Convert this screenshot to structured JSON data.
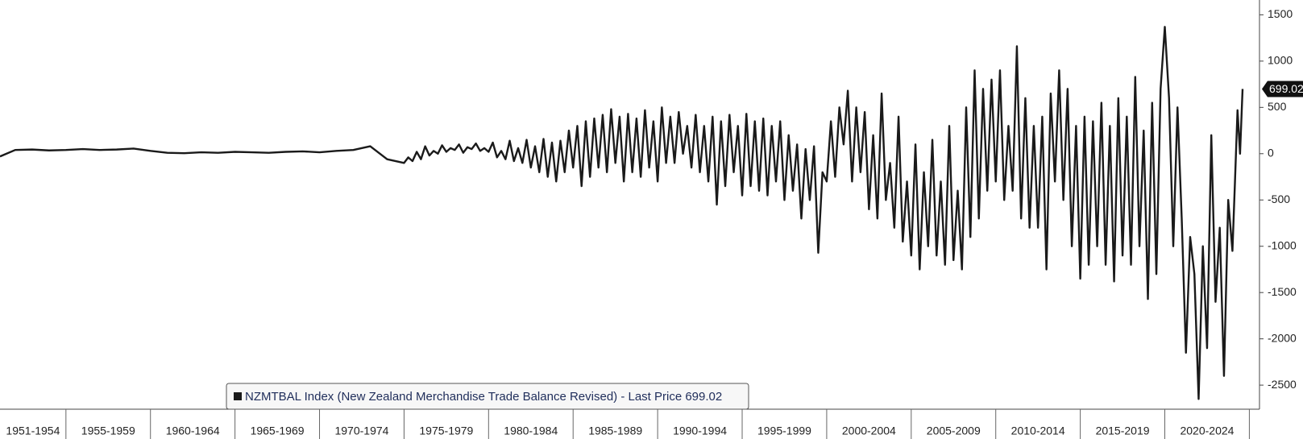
{
  "chart_data": {
    "type": "line",
    "x": [
      1951.1,
      1952,
      1953,
      1954,
      1955,
      1956,
      1957,
      1958,
      1959,
      1960,
      1961,
      1962,
      1963,
      1964,
      1965,
      1966,
      1967,
      1968,
      1969,
      1970,
      1971,
      1972,
      1973,
      1974,
      1975,
      1975.25,
      1975.5,
      1975.75,
      1976,
      1976.25,
      1976.5,
      1976.75,
      1977,
      1977.25,
      1977.5,
      1977.75,
      1978,
      1978.25,
      1978.5,
      1978.75,
      1979,
      1979.25,
      1979.5,
      1979.75,
      1980,
      1980.25,
      1980.5,
      1980.75,
      1981,
      1981.25,
      1981.5,
      1981.75,
      1982,
      1982.25,
      1982.5,
      1982.75,
      1983,
      1983.25,
      1983.5,
      1983.75,
      1984,
      1984.25,
      1984.5,
      1984.75,
      1985,
      1985.25,
      1985.5,
      1985.75,
      1986,
      1986.25,
      1986.5,
      1986.75,
      1987,
      1987.25,
      1987.5,
      1987.75,
      1988,
      1988.25,
      1988.5,
      1988.75,
      1989,
      1989.25,
      1989.5,
      1989.75,
      1990,
      1990.25,
      1990.5,
      1990.75,
      1991,
      1991.25,
      1991.5,
      1991.75,
      1992,
      1992.25,
      1992.5,
      1992.75,
      1993,
      1993.25,
      1993.5,
      1993.75,
      1994,
      1994.25,
      1994.5,
      1994.75,
      1995,
      1995.25,
      1995.5,
      1995.75,
      1996,
      1996.25,
      1996.5,
      1996.75,
      1997,
      1997.25,
      1997.5,
      1997.75,
      1998,
      1998.25,
      1998.5,
      1998.75,
      1999,
      1999.25,
      1999.5,
      1999.75,
      2000,
      2000.25,
      2000.5,
      2000.75,
      2001,
      2001.25,
      2001.5,
      2001.75,
      2002,
      2002.25,
      2002.5,
      2002.75,
      2003,
      2003.25,
      2003.5,
      2003.75,
      2004,
      2004.25,
      2004.5,
      2004.75,
      2005,
      2005.25,
      2005.5,
      2005.75,
      2006,
      2006.25,
      2006.5,
      2006.75,
      2007,
      2007.25,
      2007.5,
      2007.75,
      2008,
      2008.25,
      2008.5,
      2008.75,
      2009,
      2009.25,
      2009.5,
      2009.75,
      2010,
      2010.25,
      2010.5,
      2010.75,
      2011,
      2011.25,
      2011.5,
      2011.75,
      2012,
      2012.25,
      2012.5,
      2012.75,
      2013,
      2013.25,
      2013.5,
      2013.75,
      2014,
      2014.25,
      2014.5,
      2014.75,
      2015,
      2015.25,
      2015.5,
      2015.75,
      2016,
      2016.25,
      2016.5,
      2016.75,
      2017,
      2017.25,
      2017.5,
      2017.75,
      2018,
      2018.25,
      2018.5,
      2018.75,
      2019,
      2019.25,
      2019.5,
      2019.75,
      2020,
      2020.25,
      2020.5,
      2020.75,
      2021,
      2021.25,
      2021.5,
      2021.75,
      2022,
      2022.25,
      2022.5,
      2022.75,
      2023,
      2023.25,
      2023.5,
      2023.75,
      2024,
      2024.15,
      2024.3,
      2024.45,
      2024.6
    ],
    "series": [
      {
        "name": "NZMTBAL Index (New Zealand Merchandise Trade Balance Revised) - Last Price 699.02",
        "color": "#1a1a1a",
        "values": [
          -30,
          40,
          45,
          35,
          40,
          50,
          40,
          45,
          55,
          30,
          10,
          5,
          15,
          10,
          20,
          15,
          10,
          20,
          25,
          15,
          30,
          40,
          80,
          -60,
          -100,
          -40,
          -80,
          20,
          -60,
          80,
          -20,
          30,
          0,
          90,
          20,
          60,
          40,
          100,
          10,
          70,
          50,
          110,
          30,
          60,
          20,
          120,
          -40,
          30,
          -60,
          140,
          -80,
          60,
          -100,
          150,
          -150,
          80,
          -200,
          160,
          -250,
          120,
          -300,
          140,
          -200,
          250,
          -150,
          300,
          -350,
          350,
          -250,
          380,
          -150,
          420,
          -200,
          480,
          -100,
          400,
          -300,
          430,
          -200,
          380,
          -250,
          470,
          -150,
          350,
          -300,
          500,
          -100,
          400,
          -100,
          450,
          0,
          300,
          -150,
          420,
          -200,
          300,
          -300,
          400,
          -550,
          350,
          -350,
          420,
          -200,
          300,
          -450,
          430,
          -350,
          350,
          -400,
          380,
          -450,
          300,
          -300,
          350,
          -500,
          200,
          -400,
          100,
          -700,
          50,
          -500,
          80,
          -1070,
          -200,
          -300,
          350,
          -250,
          500,
          100,
          680,
          -300,
          500,
          -200,
          450,
          -600,
          200,
          -700,
          650,
          -500,
          -100,
          -800,
          400,
          -950,
          -300,
          -1100,
          100,
          -1250,
          -200,
          -1000,
          150,
          -1100,
          -300,
          -1200,
          300,
          -1150,
          -400,
          -1250,
          500,
          -900,
          900,
          -700,
          700,
          -400,
          800,
          -300,
          900,
          -500,
          300,
          -400,
          1160,
          -700,
          600,
          -800,
          300,
          -800,
          400,
          -1250,
          650,
          -300,
          900,
          -500,
          700,
          -1000,
          300,
          -1350,
          400,
          -1200,
          350,
          -1000,
          550,
          -1200,
          300,
          -1380,
          600,
          -1100,
          400,
          -1200,
          830,
          -1000,
          250,
          -1570,
          550,
          -1300,
          700,
          1370,
          600,
          -1000,
          500,
          -700,
          -2150,
          -900,
          -1300,
          -2650,
          -1000,
          -2100,
          200,
          -1600,
          -800,
          -2400,
          -500,
          -1050,
          -300,
          470,
          0,
          699.02
        ]
      }
    ],
    "xlim": [
      1951.1,
      2025.6
    ],
    "xticks": [
      1955,
      1960,
      1965,
      1970,
      1975,
      1980,
      1985,
      1990,
      1995,
      2000,
      2005,
      2010,
      2015,
      2020,
      2025
    ],
    "x_bands": [
      "1951-1954",
      "1955-1959",
      "1960-1964",
      "1965-1969",
      "1970-1974",
      "1975-1979",
      "1980-1984",
      "1985-1989",
      "1990-1994",
      "1995-1999",
      "2000-2004",
      "2005-2009",
      "2010-2014",
      "2015-2019",
      "2020-2024"
    ],
    "ylim": [
      -2760,
      1660
    ],
    "yticks": [
      1500,
      1000,
      500,
      0,
      -500,
      -1000,
      -1500,
      -2000,
      -2500
    ],
    "legend": "bottom-left"
  }
}
